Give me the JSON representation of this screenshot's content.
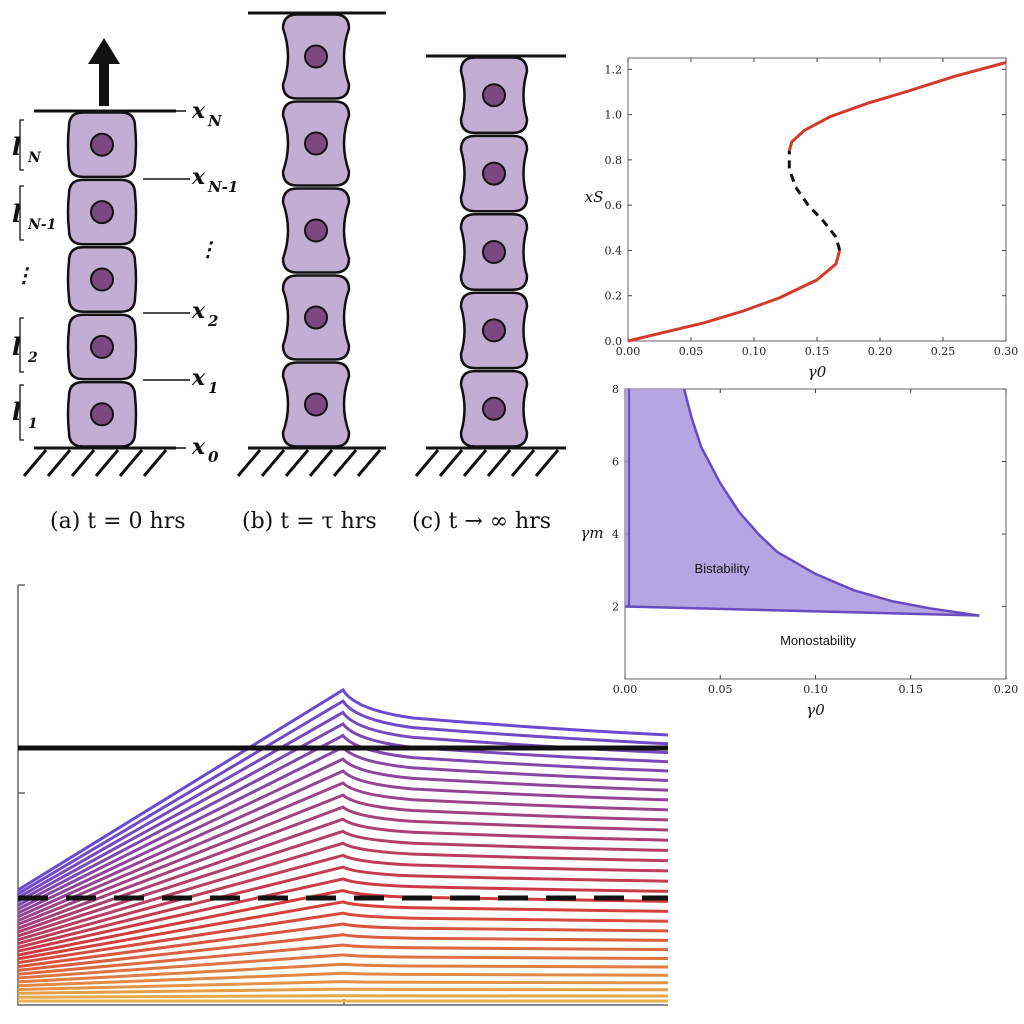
{
  "colors": {
    "cell_fill": "#c2aed3",
    "nucleus_fill": "#7c4880",
    "outline": "#111111",
    "stable_branch": "#d43a2b",
    "unstable_branch": "#111111",
    "region_fill": "#a995dd",
    "region_edge": "#6a4bbf",
    "sweep_start": "#6a4bd0",
    "sweep_mid": "#d43a3a",
    "sweep_end": "#e8b24a"
  },
  "panel_a": {
    "caption": "(a) t = 0 hrs",
    "cell_count": 5,
    "position_labels": [
      "x",
      "x",
      "x",
      "x",
      "x"
    ],
    "position_subscripts": [
      "N",
      "N-1",
      "2",
      "1",
      "0"
    ],
    "length_labels": [
      "l",
      "l",
      "l",
      "l"
    ],
    "length_subscripts": [
      "N",
      "N-1",
      "2",
      "1"
    ],
    "ellipsis": "⋮",
    "arrow_icon": "up-arrow-icon"
  },
  "panel_b": {
    "caption": "(b) t = τ hrs",
    "cell_count": 5
  },
  "panel_c": {
    "caption": "(c) t → ∞ hrs",
    "cell_count": 5
  },
  "chart_data": [
    {
      "type": "line",
      "name": "bifurcation",
      "xlabel": "γ0",
      "ylabel": "xS",
      "xlim": [
        0,
        0.3
      ],
      "ylim": [
        0,
        1.25
      ],
      "x_ticks": [
        "0.00",
        "0.05",
        "0.10",
        "0.15",
        "0.20",
        "0.25",
        "0.30"
      ],
      "y_ticks": [
        "0.0",
        "0.2",
        "0.4",
        "0.6",
        "0.8",
        "1.0",
        "1.2"
      ],
      "series": [
        {
          "style": "solid",
          "points": [
            [
              0,
              0
            ],
            [
              0.03,
              0.04
            ],
            [
              0.06,
              0.08
            ],
            [
              0.09,
              0.13
            ],
            [
              0.12,
              0.19
            ],
            [
              0.15,
              0.27
            ],
            [
              0.165,
              0.34
            ],
            [
              0.168,
              0.4
            ]
          ]
        },
        {
          "style": "dashed",
          "points": [
            [
              0.168,
              0.4
            ],
            [
              0.165,
              0.46
            ],
            [
              0.155,
              0.53
            ],
            [
              0.143,
              0.6
            ],
            [
              0.133,
              0.68
            ],
            [
              0.128,
              0.76
            ],
            [
              0.128,
              0.84
            ]
          ]
        },
        {
          "style": "solid",
          "points": [
            [
              0.128,
              0.84
            ],
            [
              0.13,
              0.88
            ],
            [
              0.14,
              0.93
            ],
            [
              0.16,
              0.99
            ],
            [
              0.19,
              1.05
            ],
            [
              0.22,
              1.1
            ],
            [
              0.26,
              1.17
            ],
            [
              0.3,
              1.23
            ]
          ]
        }
      ]
    },
    {
      "type": "area",
      "name": "phase-diagram",
      "xlabel": "γ0",
      "ylabel": "γm",
      "xlim": [
        0,
        0.2
      ],
      "ylim": [
        0,
        8
      ],
      "x_ticks": [
        "0.00",
        "0.05",
        "0.10",
        "0.15",
        "0.20"
      ],
      "y_ticks": [
        "2",
        "4",
        "6",
        "8"
      ],
      "regions": [
        "Bistability",
        "Monostability"
      ],
      "upper_boundary": [
        [
          0.031,
          8
        ],
        [
          0.035,
          7.2
        ],
        [
          0.04,
          6.4
        ],
        [
          0.05,
          5.4
        ],
        [
          0.06,
          4.6
        ],
        [
          0.07,
          4.0
        ],
        [
          0.08,
          3.5
        ],
        [
          0.1,
          2.9
        ],
        [
          0.12,
          2.45
        ],
        [
          0.14,
          2.15
        ],
        [
          0.16,
          1.95
        ],
        [
          0.186,
          1.75
        ]
      ],
      "lower_boundary": [
        [
          0,
          2.0
        ],
        [
          0.186,
          1.75
        ]
      ]
    },
    {
      "type": "line",
      "name": "trajectory-sweep",
      "series_count": 30,
      "peak_fraction": 0.5,
      "reference_lines": [
        "solid",
        "dashed"
      ]
    }
  ]
}
